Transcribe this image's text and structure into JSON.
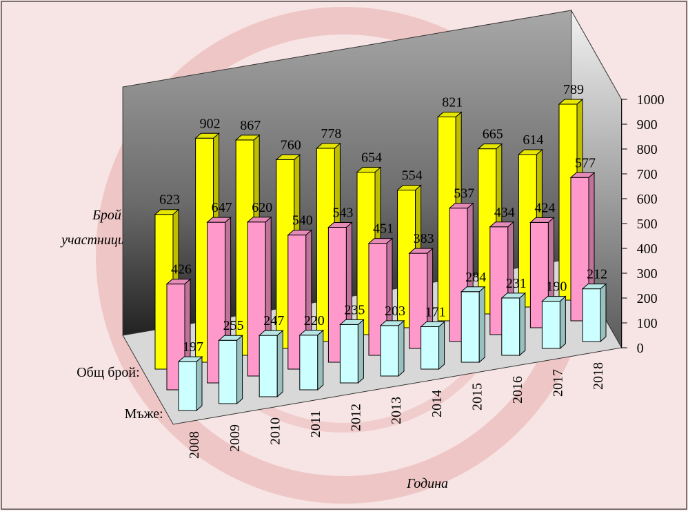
{
  "chart_data": {
    "type": "bar3d",
    "y_axis_label": "Брой участници",
    "x_axis_label": "Година",
    "categories": [
      "2008",
      "2009",
      "2010",
      "2011",
      "2012",
      "2013",
      "2014",
      "2015",
      "2016",
      "2017",
      "2018"
    ],
    "series": [
      {
        "name": "Общ брой:",
        "color": "#ffff00",
        "values": [
          623,
          902,
          867,
          760,
          778,
          654,
          554,
          821,
          665,
          614,
          789
        ]
      },
      {
        "color": "#ff99cc",
        "values": [
          426,
          647,
          620,
          540,
          543,
          451,
          383,
          537,
          434,
          424,
          577
        ]
      },
      {
        "name": "Мъже:",
        "color": "#ccffff",
        "values": [
          197,
          255,
          247,
          220,
          235,
          203,
          171,
          284,
          231,
          190,
          212
        ]
      }
    ],
    "ylim": [
      0,
      1000
    ],
    "yticks": [
      0,
      100,
      200,
      300,
      400,
      500,
      600,
      700,
      800,
      900,
      1000
    ]
  }
}
